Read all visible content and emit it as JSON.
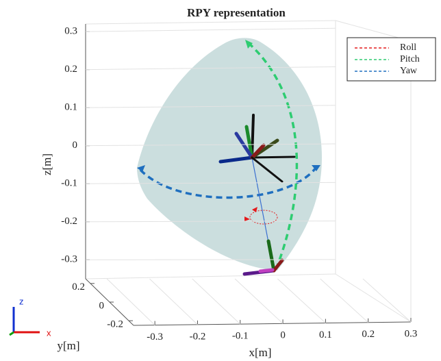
{
  "chart_data": {
    "type": "3d",
    "title": "RPY representation",
    "xlabel": "x[m]",
    "ylabel": "y[m]",
    "zlabel": "z[m]",
    "xlim": [
      -0.35,
      0.3
    ],
    "xticks": [
      -0.3,
      -0.2,
      -0.1,
      0,
      0.1,
      0.2,
      0.3
    ],
    "ylim": [
      -0.25,
      0.25
    ],
    "yticks": [
      0.2,
      0,
      -0.2
    ],
    "zlim": [
      -0.35,
      0.32
    ],
    "zticks": [
      0.3,
      0.2,
      0.1,
      0,
      -0.1,
      -0.2,
      -0.3
    ],
    "grid": true,
    "legend": "upper right",
    "series": [
      {
        "name": "Roll",
        "color": "#e41a1c"
      },
      {
        "name": "Pitch",
        "color": "#2ecc71"
      },
      {
        "name": "Yaw",
        "color": "#1f6fbf"
      }
    ],
    "triad": {
      "z": "z",
      "x": "x"
    }
  }
}
